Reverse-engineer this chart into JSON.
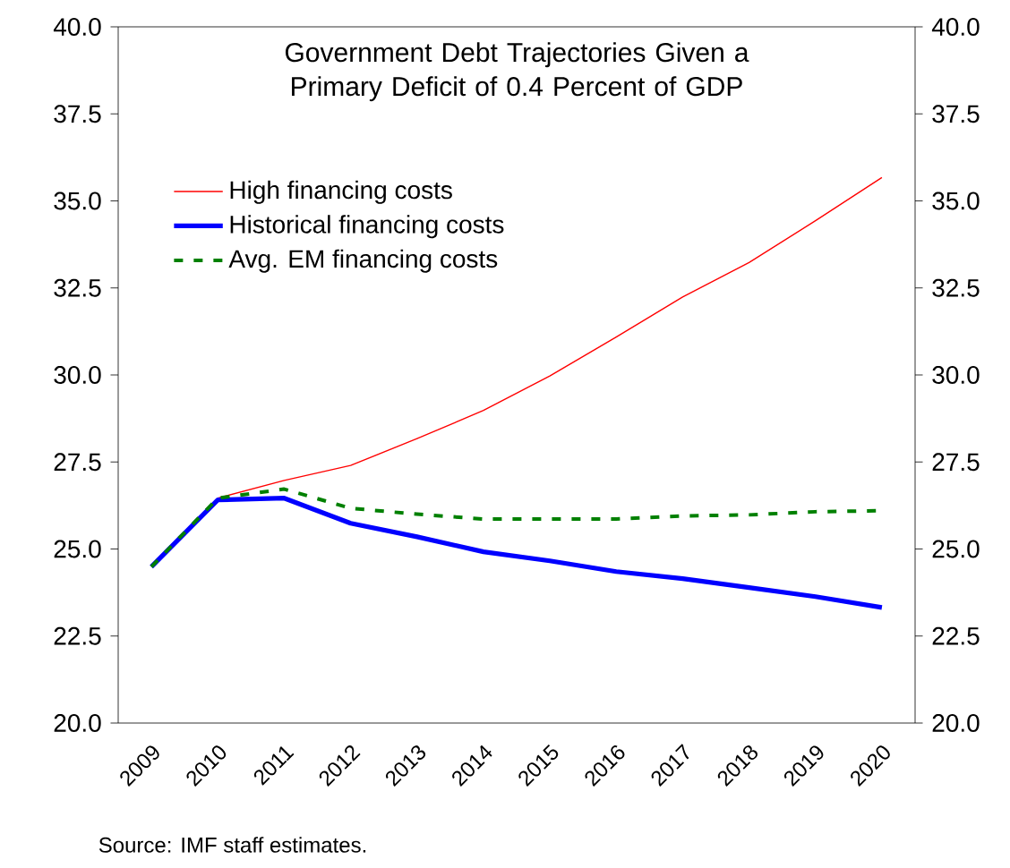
{
  "chart_data": {
    "type": "line",
    "title": "Government Debt Trajectories Given a Primary Deficit of 0.4 Percent of GDP",
    "categories": [
      "2009",
      "2010",
      "2011",
      "2012",
      "2013",
      "2014",
      "2015",
      "2016",
      "2017",
      "2018",
      "2019",
      "2020"
    ],
    "series": [
      {
        "name": "High financing costs",
        "color": "#ff0000",
        "line_style": "solid",
        "values": [
          null,
          26.46,
          26.97,
          27.4,
          28.17,
          28.98,
          29.97,
          31.09,
          32.24,
          33.23,
          34.43,
          35.67
        ]
      },
      {
        "name": "Historical financing costs",
        "color": "#0000ff",
        "line_style": "solid",
        "values": [
          24.49,
          26.41,
          26.46,
          25.74,
          25.35,
          24.92,
          24.66,
          24.35,
          24.15,
          23.89,
          23.63,
          23.32
        ]
      },
      {
        "name": "Avg. EM financing costs",
        "color": "#008000",
        "line_style": "dashed",
        "values": [
          24.49,
          26.46,
          26.72,
          26.17,
          26.0,
          25.86,
          25.86,
          25.86,
          25.95,
          25.98,
          26.07,
          26.1
        ]
      }
    ],
    "ylim": [
      20,
      40
    ],
    "yticks": [
      {
        "value": 20,
        "label": "20.0"
      },
      {
        "value": 22.5,
        "label": "22.5"
      },
      {
        "value": 25,
        "label": "25.0"
      },
      {
        "value": 27.5,
        "label": "27.5"
      },
      {
        "value": 30,
        "label": "30.0"
      },
      {
        "value": 32.5,
        "label": "32.5"
      },
      {
        "value": 35,
        "label": "35.0"
      },
      {
        "value": 37.5,
        "label": "37.5"
      },
      {
        "value": 40,
        "label": "40.0"
      }
    ],
    "y2lim": [
      20,
      40
    ],
    "y2ticks": [
      {
        "value": 20,
        "label": "20.0"
      },
      {
        "value": 22.5,
        "label": "22.5"
      },
      {
        "value": 25,
        "label": "25.0"
      },
      {
        "value": 27.5,
        "label": "27.5"
      },
      {
        "value": 30,
        "label": "30.0"
      },
      {
        "value": 32.5,
        "label": "32.5"
      },
      {
        "value": 35,
        "label": "35.0"
      },
      {
        "value": 37.5,
        "label": "37.5"
      },
      {
        "value": 40,
        "label": "40.0"
      }
    ],
    "legend": "top left",
    "grid": false,
    "marker": "none",
    "annotations": [
      "Source: IMF staff estimates."
    ]
  }
}
